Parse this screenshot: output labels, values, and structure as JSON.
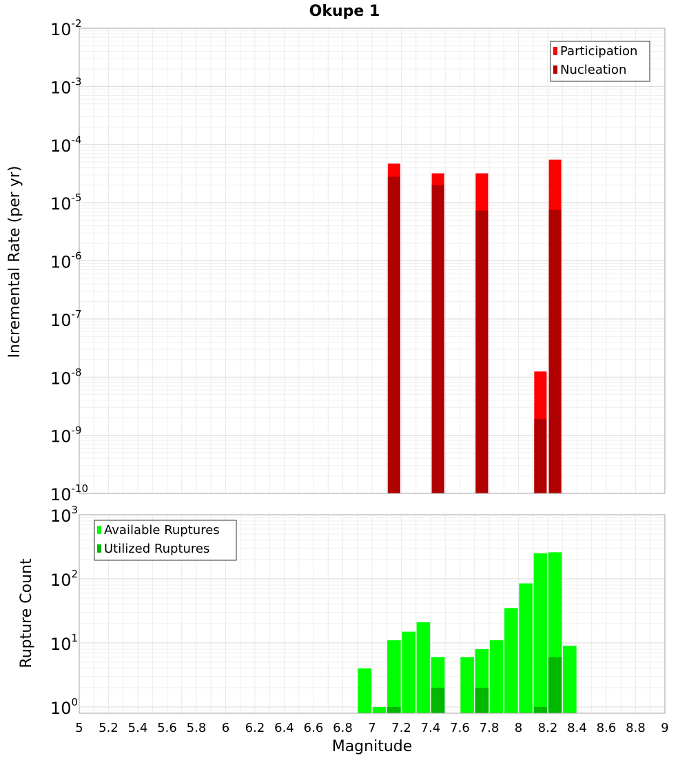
{
  "chart_data": [
    {
      "type": "bar",
      "title": "Okupe 1",
      "xlabel": "",
      "ylabel": "Incremental Rate (per yr)",
      "yscale": "log",
      "ylim": [
        1e-10,
        0.01
      ],
      "xlim": [
        5,
        9
      ],
      "grid": true,
      "legend_position": "top-right",
      "yticks": [
        {
          "base": "10",
          "exp": "-10"
        },
        {
          "base": "10",
          "exp": "-9"
        },
        {
          "base": "10",
          "exp": "-8"
        },
        {
          "base": "10",
          "exp": "-7"
        },
        {
          "base": "10",
          "exp": "-6"
        },
        {
          "base": "10",
          "exp": "-5"
        },
        {
          "base": "10",
          "exp": "-4"
        },
        {
          "base": "10",
          "exp": "-3"
        },
        {
          "base": "10",
          "exp": "-2"
        }
      ],
      "series": [
        {
          "name": "Participation",
          "color": "#ff0000",
          "x": [
            7.15,
            7.45,
            7.75,
            8.15,
            8.25
          ],
          "values": [
            4.7e-05,
            3.2e-05,
            3.2e-05,
            1.25e-08,
            5.5e-05
          ]
        },
        {
          "name": "Nucleation",
          "color": "#b00000",
          "x": [
            7.15,
            7.45,
            7.75,
            8.15,
            8.25
          ],
          "values": [
            2.8e-05,
            2e-05,
            7.3e-06,
            1.9e-09,
            7.5e-06
          ]
        }
      ]
    },
    {
      "type": "bar",
      "xlabel": "Magnitude",
      "ylabel": "Rupture Count",
      "yscale": "log",
      "ylim": [
        0.8,
        1000
      ],
      "xlim": [
        5,
        9
      ],
      "grid": true,
      "legend_position": "top-left",
      "xticks": [
        "5",
        "5.2",
        "5.4",
        "5.6",
        "5.8",
        "6",
        "6.2",
        "6.4",
        "6.6",
        "6.8",
        "7",
        "7.2",
        "7.4",
        "7.6",
        "7.8",
        "8",
        "8.2",
        "8.4",
        "8.6",
        "8.8",
        "9"
      ],
      "yticks": [
        {
          "base": "10",
          "exp": "0"
        },
        {
          "base": "10",
          "exp": "1"
        },
        {
          "base": "10",
          "exp": "2"
        },
        {
          "base": "10",
          "exp": "3"
        }
      ],
      "series": [
        {
          "name": "Available Ruptures",
          "color": "#00ff00",
          "x": [
            6.95,
            7.05,
            7.15,
            7.25,
            7.35,
            7.45,
            7.65,
            7.75,
            7.85,
            7.95,
            8.05,
            8.15,
            8.25,
            8.35
          ],
          "values": [
            4,
            1,
            11,
            15,
            21,
            6,
            6,
            8,
            11,
            35,
            85,
            250,
            260,
            9
          ]
        },
        {
          "name": "Utilized Ruptures",
          "color": "#00b800",
          "x": [
            7.15,
            7.45,
            7.75,
            8.15,
            8.25
          ],
          "values": [
            1,
            2,
            2,
            1,
            6
          ]
        }
      ]
    }
  ]
}
